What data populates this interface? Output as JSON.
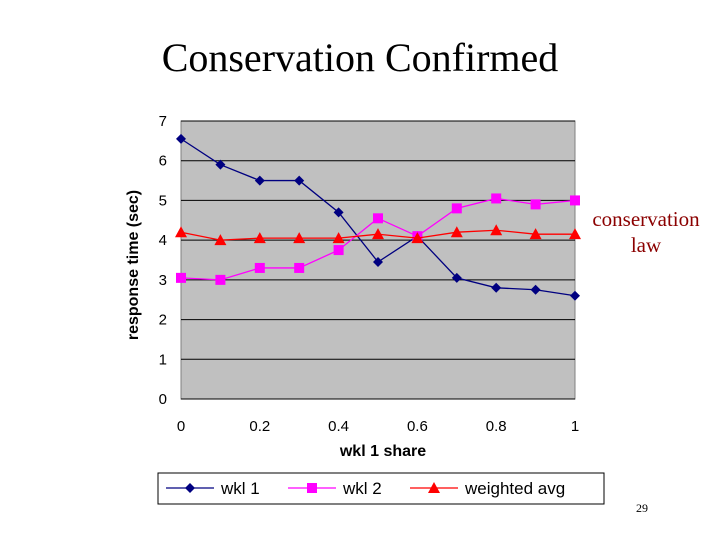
{
  "slide": {
    "title": "Conservation Confirmed",
    "annotation_line1": "conservation",
    "annotation_line2": "law",
    "page_number": "29"
  },
  "chart_data": {
    "type": "line",
    "title": "",
    "xlabel": "wkl 1 share",
    "ylabel": "response time (sec)",
    "xlim": [
      0,
      1
    ],
    "ylim": [
      0,
      7
    ],
    "x_ticks": [
      "0",
      "0.2",
      "0.4",
      "0.6",
      "0.8",
      "1"
    ],
    "y_ticks": [
      "0",
      "1",
      "2",
      "3",
      "4",
      "5",
      "6",
      "7"
    ],
    "grid": "horizontal",
    "legend_position": "bottom",
    "plot_background": "#c0c0c0",
    "x": [
      0,
      0.1,
      0.2,
      0.3,
      0.4,
      0.5,
      0.6,
      0.7,
      0.8,
      0.9,
      1.0
    ],
    "series": [
      {
        "name": "wkl 1",
        "color": "#000080",
        "marker": "diamond",
        "values": [
          6.55,
          5.9,
          5.5,
          5.5,
          4.7,
          3.45,
          4.1,
          3.05,
          2.8,
          2.75,
          2.6
        ]
      },
      {
        "name": "wkl 2",
        "color": "#ff00ff",
        "marker": "square",
        "values": [
          3.05,
          3.0,
          3.3,
          3.3,
          3.75,
          4.55,
          4.1,
          4.8,
          5.05,
          4.9,
          5.0
        ]
      },
      {
        "name": "weighted avg",
        "color": "#ff0000",
        "marker": "triangle",
        "values": [
          4.2,
          4.0,
          4.05,
          4.05,
          4.05,
          4.15,
          4.05,
          4.2,
          4.25,
          4.15,
          4.15
        ]
      }
    ]
  }
}
